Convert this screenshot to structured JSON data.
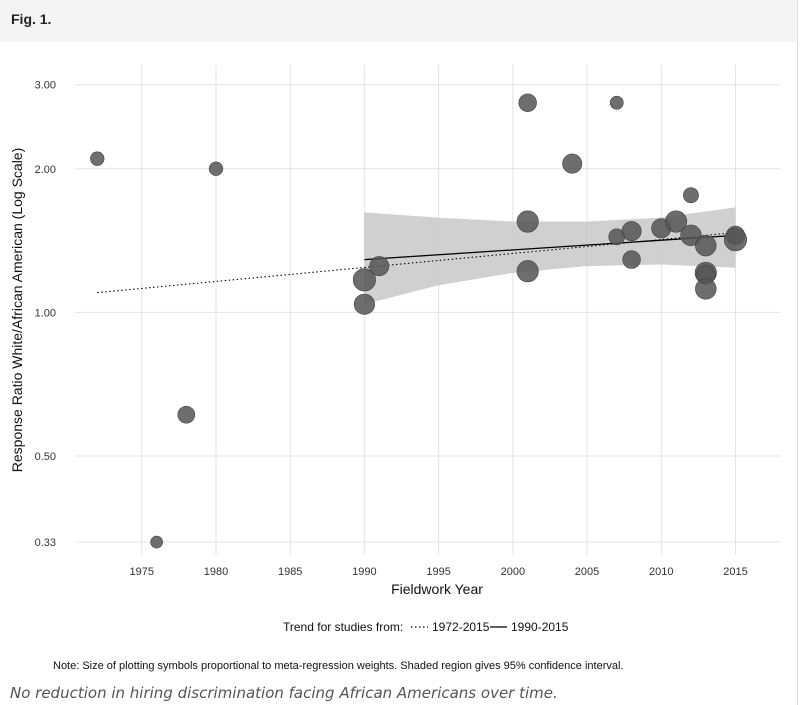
{
  "figure": {
    "label": "Fig. 1.",
    "caption": "No reduction in hiring discrimination facing African Americans over time."
  },
  "colors": {
    "point_fill": "#555555",
    "point_stroke": "#444444",
    "band_fill": "#c8c8c8",
    "grid": "#e3e3e3",
    "line": "#000000"
  },
  "chart_data": {
    "type": "scatter",
    "xlabel": "Fieldwork Year",
    "ylabel": "Response Ratio White/African American (Log Scale)",
    "y_scale": "log",
    "xlim": [
      1970.5,
      2018
    ],
    "ylim": [
      0.31,
      3.3
    ],
    "x_ticks": [
      1975,
      1980,
      1985,
      1990,
      1995,
      2000,
      2005,
      2010,
      2015
    ],
    "x_tick_labels": [
      "1975",
      "1980",
      "1985",
      "1990",
      "1995",
      "2000",
      "2005",
      "2010",
      "2015"
    ],
    "y_ticks": [
      0.33,
      0.5,
      1.0,
      2.0,
      3.0
    ],
    "y_tick_labels": [
      "0.33",
      "0.50",
      "1.00",
      "2.00",
      "3.00"
    ],
    "points": [
      {
        "x": 1972,
        "y": 2.1,
        "weight": 1.3
      },
      {
        "x": 1976,
        "y": 0.33,
        "weight": 1.0
      },
      {
        "x": 1978,
        "y": 0.61,
        "weight": 2.0
      },
      {
        "x": 1980,
        "y": 2.0,
        "weight": 1.3
      },
      {
        "x": 1990,
        "y": 1.17,
        "weight": 3.5
      },
      {
        "x": 1990,
        "y": 1.04,
        "weight": 2.9
      },
      {
        "x": 1991,
        "y": 1.25,
        "weight": 2.6
      },
      {
        "x": 2001,
        "y": 2.75,
        "weight": 2.2
      },
      {
        "x": 2001,
        "y": 1.55,
        "weight": 3.2
      },
      {
        "x": 2001,
        "y": 1.22,
        "weight": 3.2
      },
      {
        "x": 2004,
        "y": 2.05,
        "weight": 2.6
      },
      {
        "x": 2007,
        "y": 2.75,
        "weight": 1.2
      },
      {
        "x": 2007,
        "y": 1.44,
        "weight": 1.8
      },
      {
        "x": 2008,
        "y": 1.48,
        "weight": 2.6
      },
      {
        "x": 2008,
        "y": 1.29,
        "weight": 2.2
      },
      {
        "x": 2010,
        "y": 1.5,
        "weight": 2.6
      },
      {
        "x": 2011,
        "y": 1.55,
        "weight": 3.2
      },
      {
        "x": 2012,
        "y": 1.76,
        "weight": 1.6
      },
      {
        "x": 2012,
        "y": 1.45,
        "weight": 3.0
      },
      {
        "x": 2013,
        "y": 1.38,
        "weight": 3.0
      },
      {
        "x": 2013,
        "y": 1.21,
        "weight": 3.2
      },
      {
        "x": 2013,
        "y": 1.2,
        "weight": 2.6
      },
      {
        "x": 2013,
        "y": 1.12,
        "weight": 3.0
      },
      {
        "x": 2015,
        "y": 1.45,
        "weight": 2.4
      },
      {
        "x": 2015,
        "y": 1.42,
        "weight": 3.5
      }
    ],
    "trend_lines": [
      {
        "name": "1972-2015",
        "style": "dotted",
        "x": [
          1972,
          2015
        ],
        "y": [
          1.1,
          1.47
        ]
      },
      {
        "name": "1990-2015",
        "style": "solid",
        "x": [
          1990,
          2015
        ],
        "y": [
          1.29,
          1.45
        ]
      }
    ],
    "confidence_band": {
      "x": [
        1990,
        1995,
        2000,
        2005,
        2010,
        2015
      ],
      "upper": [
        1.62,
        1.58,
        1.55,
        1.55,
        1.58,
        1.66
      ],
      "lower": [
        1.04,
        1.14,
        1.21,
        1.25,
        1.26,
        1.24
      ]
    },
    "legend": {
      "title": "Trend for studies from:",
      "entries": [
        "1972-2015",
        "1990-2015"
      ]
    },
    "note": "Note: Size of plotting symbols proportional to meta-regression weights. Shaded region gives 95% confidence interval."
  }
}
